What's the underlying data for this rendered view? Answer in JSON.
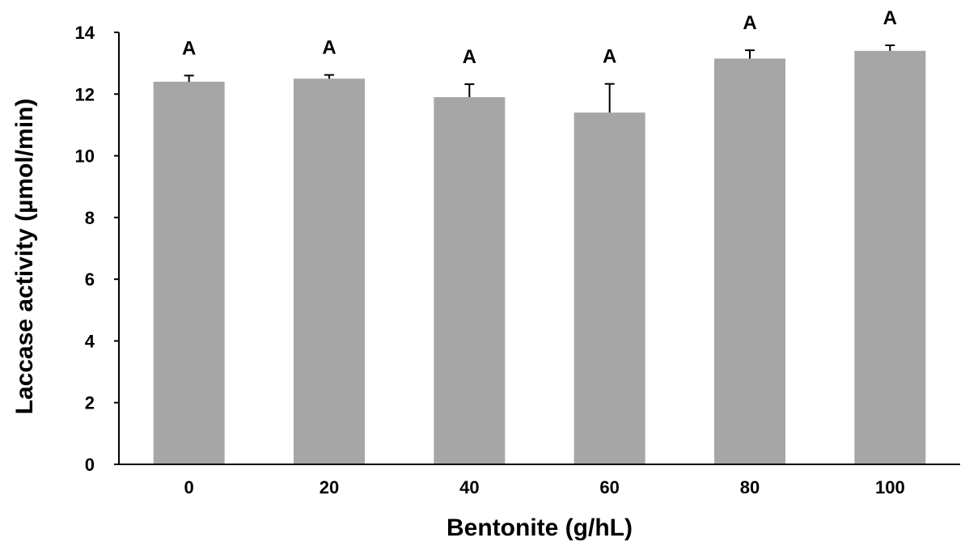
{
  "chart_data": {
    "type": "bar",
    "title": "",
    "xlabel": "Bentonite (g/hL)",
    "ylabel": "Laccase activity (µmol/min)",
    "categories": [
      "0",
      "20",
      "40",
      "60",
      "80",
      "100"
    ],
    "values": [
      12.4,
      12.5,
      11.9,
      11.4,
      13.15,
      13.4
    ],
    "error_plus": [
      0.2,
      0.12,
      0.42,
      0.93,
      0.27,
      0.18
    ],
    "significance_labels": [
      "A",
      "A",
      "A",
      "A",
      "A",
      "A"
    ],
    "ylim": [
      0,
      14
    ],
    "yticks": [
      "0",
      "2",
      "4",
      "6",
      "8",
      "10",
      "12",
      "14"
    ],
    "grid": false,
    "legend": "none",
    "colors": {
      "bar": "#a6a6a6",
      "error_bar": "#000000",
      "axis": "#000000"
    }
  }
}
